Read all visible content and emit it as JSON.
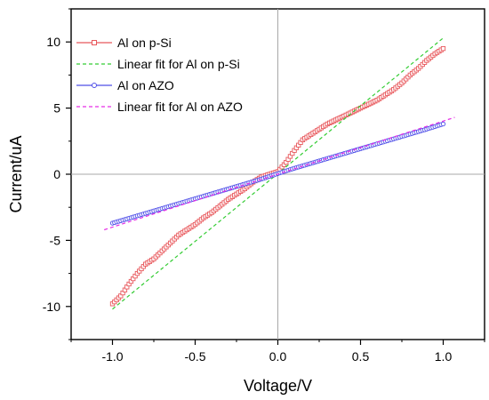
{
  "chart_data": {
    "type": "line",
    "title": "",
    "xlabel": "Voltage/V",
    "ylabel": "Current/uA",
    "xlim": [
      -1.25,
      1.25
    ],
    "ylim": [
      -12.5,
      12.5
    ],
    "x_ticks": [
      -1.0,
      -0.5,
      0.0,
      0.5,
      1.0
    ],
    "x_tick_labels": [
      "-1.0",
      "-0.5",
      "0.0",
      "0.5",
      "1.0"
    ],
    "y_ticks": [
      -10,
      -5,
      0,
      5,
      10
    ],
    "y_tick_labels": [
      "-10",
      "-5",
      "0",
      "5",
      "10"
    ],
    "zero_lines": true,
    "grid": false,
    "legend_position": "top-left",
    "series": [
      {
        "name": "Al on p-Si",
        "style": "line-markers",
        "marker": "square",
        "color": "#e8585c",
        "x": [
          -1.0,
          -0.95,
          -0.9,
          -0.85,
          -0.8,
          -0.75,
          -0.7,
          -0.65,
          -0.6,
          -0.55,
          -0.5,
          -0.45,
          -0.4,
          -0.35,
          -0.3,
          -0.25,
          -0.2,
          -0.15,
          -0.1,
          -0.05,
          0.0,
          0.05,
          0.1,
          0.15,
          0.2,
          0.25,
          0.3,
          0.35,
          0.4,
          0.45,
          0.5,
          0.55,
          0.6,
          0.65,
          0.7,
          0.75,
          0.8,
          0.85,
          0.9,
          0.95,
          1.0
        ],
        "y": [
          -9.8,
          -9.2,
          -8.3,
          -7.5,
          -6.8,
          -6.4,
          -5.8,
          -5.2,
          -4.6,
          -4.2,
          -3.8,
          -3.3,
          -2.9,
          -2.4,
          -1.9,
          -1.5,
          -1.1,
          -0.6,
          -0.2,
          0.0,
          0.2,
          0.9,
          1.8,
          2.6,
          3.0,
          3.4,
          3.8,
          4.1,
          4.4,
          4.7,
          5.0,
          5.3,
          5.6,
          6.0,
          6.4,
          6.9,
          7.5,
          8.0,
          8.6,
          9.1,
          9.5
        ]
      },
      {
        "name": "Linear fit for Al on p-Si",
        "style": "dashed",
        "color": "#33cc33",
        "x": [
          -1.0,
          1.0
        ],
        "y": [
          -10.2,
          10.3
        ]
      },
      {
        "name": "Al on AZO",
        "style": "line-markers",
        "marker": "circle",
        "color": "#4f4fe8",
        "x": [
          -1.0,
          -0.9,
          -0.8,
          -0.7,
          -0.6,
          -0.5,
          -0.4,
          -0.3,
          -0.2,
          -0.1,
          0.0,
          0.1,
          0.2,
          0.3,
          0.4,
          0.5,
          0.6,
          0.7,
          0.8,
          0.9,
          1.0
        ],
        "y": [
          -3.7,
          -3.33,
          -2.96,
          -2.59,
          -2.22,
          -1.85,
          -1.48,
          -1.11,
          -0.74,
          -0.37,
          0.05,
          0.45,
          0.82,
          1.19,
          1.56,
          1.93,
          2.3,
          2.67,
          3.04,
          3.41,
          3.8
        ]
      },
      {
        "name": "Linear fit for Al on AZO",
        "style": "dashed",
        "color": "#e62ee6",
        "x": [
          -1.05,
          1.07
        ],
        "y": [
          -4.2,
          4.3
        ]
      }
    ]
  }
}
